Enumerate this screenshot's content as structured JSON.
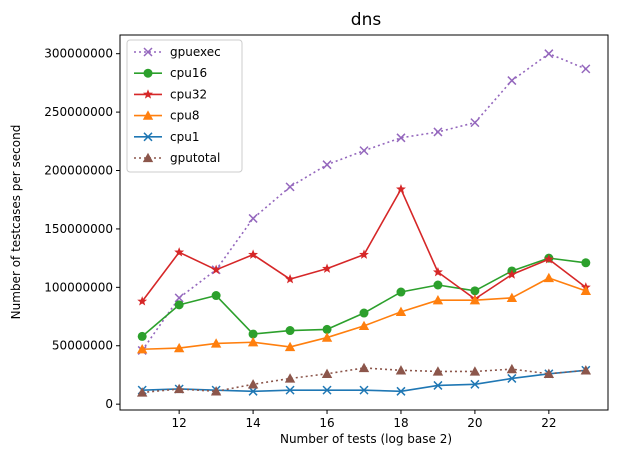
{
  "chart_data": {
    "type": "line",
    "title": "dns",
    "xlabel": "Number of tests (log base 2)",
    "ylabel": "Number of testcases per second",
    "x": [
      11,
      12,
      13,
      14,
      15,
      16,
      17,
      18,
      19,
      20,
      21,
      22,
      23
    ],
    "xlim": [
      10.4,
      23.6
    ],
    "ylim": [
      -5000000,
      316000000
    ],
    "xticks": [
      12,
      14,
      16,
      18,
      20,
      22
    ],
    "xtick_labels": [
      "12",
      "14",
      "16",
      "18",
      "20",
      "22"
    ],
    "yticks": [
      0,
      50000000,
      100000000,
      150000000,
      200000000,
      250000000,
      300000000
    ],
    "ytick_labels": [
      "0",
      "50000000",
      "100000000",
      "150000000",
      "200000000",
      "250000000",
      "300000000"
    ],
    "grid": false,
    "legend_position": "top-left",
    "series": [
      {
        "name": "gpuexec",
        "color": "#9467bd",
        "marker": "x",
        "linestyle": "dotted",
        "values": [
          46000000,
          91000000,
          115000000,
          159000000,
          186000000,
          205000000,
          217000000,
          228000000,
          233000000,
          241000000,
          277000000,
          300000000,
          287000000
        ]
      },
      {
        "name": "cpu16",
        "color": "#2ca02c",
        "marker": "circle",
        "linestyle": "solid",
        "values": [
          58000000,
          85000000,
          93000000,
          60000000,
          63000000,
          64000000,
          78000000,
          96000000,
          102000000,
          97000000,
          114000000,
          125000000,
          121000000
        ]
      },
      {
        "name": "cpu32",
        "color": "#d62728",
        "marker": "star",
        "linestyle": "solid",
        "values": [
          88000000,
          130000000,
          115000000,
          128000000,
          107000000,
          116000000,
          128000000,
          184000000,
          113000000,
          90000000,
          111000000,
          124000000,
          100000000
        ]
      },
      {
        "name": "cpu8",
        "color": "#ff7f0e",
        "marker": "triangle",
        "linestyle": "solid",
        "values": [
          47000000,
          48000000,
          52000000,
          53000000,
          49000000,
          57000000,
          67000000,
          79000000,
          89000000,
          89000000,
          91000000,
          108000000,
          97000000
        ]
      },
      {
        "name": "cpu1",
        "color": "#1f77b4",
        "marker": "x",
        "linestyle": "solid",
        "values": [
          12000000,
          13000000,
          12000000,
          11000000,
          12000000,
          12000000,
          12000000,
          11000000,
          16000000,
          17000000,
          22000000,
          26000000,
          29000000
        ]
      },
      {
        "name": "gputotal",
        "color": "#8c564b",
        "marker": "triangle",
        "linestyle": "dotted",
        "values": [
          10000000,
          13000000,
          11000000,
          17000000,
          22000000,
          26000000,
          31000000,
          29000000,
          28000000,
          28000000,
          30000000,
          26000000,
          29000000
        ]
      }
    ]
  }
}
